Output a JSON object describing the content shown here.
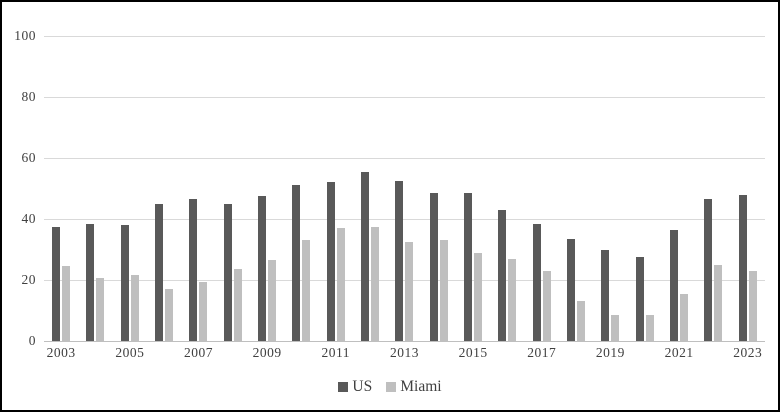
{
  "chart_data": {
    "type": "bar",
    "title": "",
    "categories": [
      "2003",
      "2004",
      "2005",
      "2006",
      "2007",
      "2008",
      "2009",
      "2010",
      "2011",
      "2012",
      "2013",
      "2014",
      "2015",
      "2016",
      "2017",
      "2018",
      "2019",
      "2020",
      "2021",
      "2022",
      "2023"
    ],
    "series": [
      {
        "name": "US",
        "color": "#595959",
        "values": [
          37.5,
          38.5,
          38,
          45,
          46.5,
          45,
          47.5,
          51,
          52,
          55.5,
          52.5,
          48.5,
          48.5,
          43,
          38.5,
          33.5,
          30,
          27.5,
          36.5,
          46.5,
          48
        ]
      },
      {
        "name": "Miami",
        "color": "#bfbfbf",
        "values": [
          24.5,
          20.5,
          21.5,
          17,
          19.5,
          23.5,
          26.5,
          33,
          37,
          37.5,
          32.5,
          33,
          29,
          27,
          23,
          13,
          8.5,
          8.5,
          15.5,
          25,
          23
        ]
      }
    ],
    "xlabel": "",
    "ylabel": "",
    "ylim": [
      0,
      100
    ],
    "y_ticks": [
      0,
      20,
      40,
      60,
      80,
      100
    ],
    "x_tick_labels_shown": [
      "2003",
      "2005",
      "2007",
      "2009",
      "2011",
      "2013",
      "2015",
      "2017",
      "2019",
      "2021",
      "2023"
    ],
    "x_label_interval": 2,
    "grid": true,
    "legend_position": "bottom",
    "legend_entries": [
      "US",
      "Miami"
    ]
  },
  "colors": {
    "us_bar": "#595959",
    "miami_bar": "#bfbfbf",
    "gridline": "#d9d9d9",
    "axis_line": "#bfbfbf",
    "text": "#404040",
    "frame_border": "#000000",
    "background": "#ffffff"
  }
}
